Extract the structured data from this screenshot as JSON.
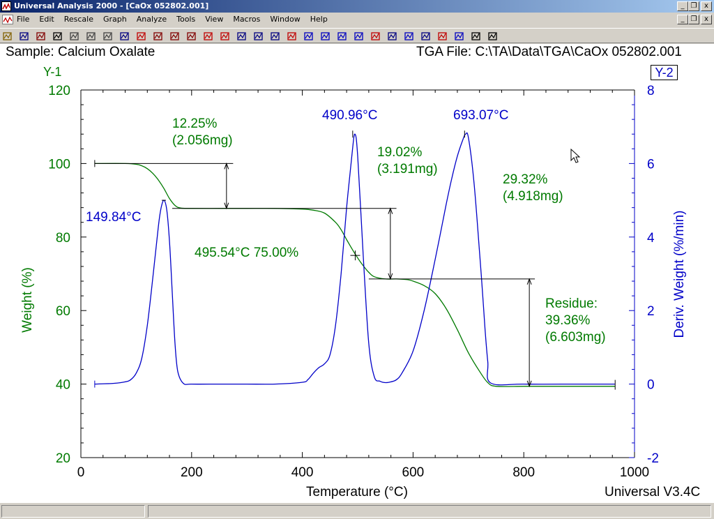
{
  "window": {
    "title": "Universal Analysis 2000 - [CaOx 052802.001]",
    "min_glyph": "_",
    "restore_glyph": "❐",
    "close_glyph": "x"
  },
  "menu": [
    "File",
    "Edit",
    "Rescale",
    "Graph",
    "Analyze",
    "Tools",
    "View",
    "Macros",
    "Window",
    "Help"
  ],
  "toolbar_icons": [
    "open-icon",
    "save-icon",
    "save-all-icon",
    "layout-icon",
    "print-icon",
    "print-preview-icon",
    "cursor-icon",
    "find-icon",
    "rescale-icon",
    "grid-icon",
    "range-icon",
    "range2-icon",
    "signal-icon",
    "crosshair-icon",
    "grid2-icon",
    "peak-icon",
    "step-icon",
    "onset-icon",
    "auto-icon",
    "derivative-icon",
    "integrate-icon",
    "valley-icon",
    "peak-max-icon",
    "tg-icon",
    "baseline-icon",
    "slope-icon",
    "forward-icon",
    "smooth-icon",
    "notes-icon",
    "report-icon"
  ],
  "plot": {
    "sample_label": "Sample: Calcium Oxalate",
    "file_label": "TGA File: C:\\TA\\Data\\TGA\\CaOx 052802.001",
    "y1_tag": "Y-1",
    "y2_tag": "Y-2",
    "footer_version": "Universal V3.4C"
  },
  "colors": {
    "weight": "#007a00",
    "derivative": "#0000c8",
    "annotation": "#000000"
  },
  "chart_data": {
    "type": "line",
    "title": "",
    "xlabel": "Temperature (°C)",
    "ylabel": "Weight (%)",
    "y2label": "Deriv. Weight (%/min)",
    "xlim": [
      0,
      1000
    ],
    "ylim": [
      20,
      120
    ],
    "y2lim": [
      -2,
      8
    ],
    "xticks": [
      0,
      200,
      400,
      600,
      800,
      1000
    ],
    "yticks": [
      20,
      40,
      60,
      80,
      100,
      120
    ],
    "y2ticks": [
      -2,
      0,
      2,
      4,
      6,
      8
    ],
    "grid": false,
    "series": [
      {
        "name": "Weight",
        "axis": "y1",
        "x": [
          25,
          80,
          100,
          110,
          120,
          130,
          140,
          150,
          160,
          170,
          180,
          200,
          250,
          300,
          350,
          400,
          420,
          440,
          460,
          470,
          480,
          490,
          500,
          510,
          520,
          530,
          550,
          570,
          590,
          600,
          620,
          640,
          660,
          680,
          700,
          720,
          735,
          750,
          800,
          850,
          900,
          965
        ],
        "values": [
          100,
          100,
          99.8,
          99.4,
          98.6,
          97.3,
          95.5,
          93.2,
          90.5,
          88.6,
          87.9,
          87.8,
          87.8,
          87.8,
          87.8,
          87.6,
          87.3,
          86.5,
          84.0,
          82.0,
          79.3,
          76.7,
          74.3,
          72.2,
          70.4,
          69.2,
          68.6,
          68.6,
          68.4,
          68.0,
          66.8,
          64.6,
          60.5,
          54.8,
          48.5,
          43.5,
          40.4,
          39.4,
          39.4,
          39.4,
          39.4,
          39.4
        ]
      },
      {
        "name": "Deriv. Weight",
        "axis": "y2",
        "x": [
          25,
          60,
          80,
          90,
          100,
          110,
          120,
          130,
          140,
          145,
          150,
          155,
          160,
          165,
          170,
          175,
          185,
          200,
          250,
          300,
          350,
          400,
          410,
          420,
          430,
          440,
          450,
          460,
          470,
          480,
          490,
          495,
          500,
          510,
          520,
          530,
          540,
          550,
          560,
          570,
          580,
          600,
          620,
          640,
          660,
          670,
          680,
          690,
          695,
          700,
          710,
          720,
          725,
          730,
          735,
          740,
          800,
          900,
          965
        ],
        "values": [
          0,
          0.02,
          0.06,
          0.12,
          0.3,
          0.7,
          1.6,
          2.9,
          4.3,
          4.8,
          5.0,
          4.75,
          3.9,
          2.5,
          1.1,
          0.35,
          0.02,
          0,
          0,
          0,
          0,
          0.05,
          0.12,
          0.3,
          0.45,
          0.55,
          0.8,
          1.6,
          3.0,
          4.8,
          6.3,
          6.8,
          6.2,
          3.5,
          1.1,
          0.2,
          0.08,
          0.04,
          0.06,
          0.12,
          0.3,
          0.9,
          2.0,
          3.4,
          4.9,
          5.6,
          6.2,
          6.65,
          6.8,
          6.7,
          5.5,
          3.6,
          2.6,
          1.5,
          0.6,
          0.03,
          0,
          0,
          0
        ]
      }
    ],
    "annotations": {
      "step1": [
        "12.25%",
        "(2.056mg)"
      ],
      "step2": [
        "19.02%",
        "(3.191mg)"
      ],
      "step3": [
        "29.32%",
        "(4.918mg)"
      ],
      "residue": [
        "Residue:",
        "39.36%",
        "(6.603mg)"
      ],
      "inflection": "495.54°C 75.00%",
      "peak1": "149.84°C",
      "peak2": "490.96°C",
      "peak3": "693.07°C"
    }
  },
  "status": {
    "left": "",
    "right": ""
  }
}
